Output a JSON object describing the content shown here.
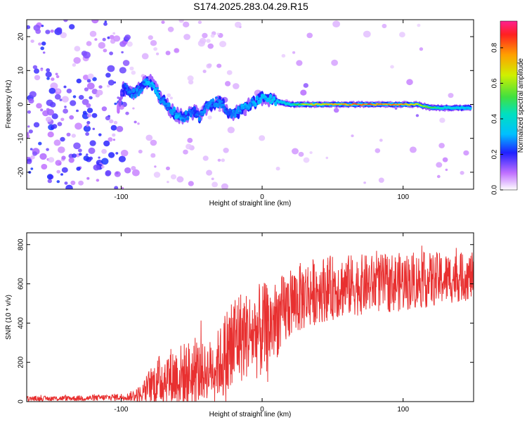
{
  "title": "S174.2025.283.04.29.R15",
  "spectrogram": {
    "type": "heatmap",
    "xlabel": "Height of straight line (km)",
    "ylabel": "Frequency (Hz)",
    "xlim": [
      -167,
      150
    ],
    "ylim": [
      -25,
      25
    ],
    "xticks": [
      -100,
      0,
      100
    ],
    "yticks": [
      -20,
      -10,
      0,
      10,
      20
    ],
    "xtick_labels": [
      "-100",
      "0",
      "100"
    ],
    "ytick_labels": [
      "-20",
      "-10",
      "0",
      "10",
      "20"
    ],
    "colorbar": {
      "label": "Normalized spectral amplitude",
      "range": [
        0,
        0.95
      ],
      "ticks": [
        0.0,
        0.2,
        0.4,
        0.6,
        0.8
      ],
      "tick_labels": [
        "0.0",
        "0.2",
        "0.4",
        "0.6",
        "0.8"
      ]
    },
    "ridge": {
      "x": [
        -102,
        -98,
        -92,
        -88,
        -84,
        -80,
        -76,
        -72,
        -68,
        -64,
        -60,
        -56,
        -52,
        -48,
        -44,
        -40,
        -36,
        -32,
        -28,
        -24,
        -20,
        -16,
        -12,
        -8,
        -4,
        0,
        10,
        20,
        30,
        40,
        50,
        60,
        70,
        80,
        90,
        100,
        110,
        120,
        130,
        140,
        148
      ],
      "freq": [
        -1,
        5,
        3,
        4,
        6,
        7,
        5,
        2,
        0,
        -2,
        -3,
        -4,
        -3,
        -2,
        -4,
        -1,
        0,
        1,
        0,
        -2,
        -3,
        -2,
        -1,
        0,
        1,
        2,
        1,
        0,
        0,
        0,
        0,
        0,
        0,
        0,
        0,
        0,
        0,
        -1,
        -1,
        -1,
        -1
      ],
      "amplitude": [
        0.1,
        0.25,
        0.3,
        0.3,
        0.3,
        0.35,
        0.35,
        0.3,
        0.3,
        0.3,
        0.35,
        0.3,
        0.3,
        0.25,
        0.3,
        0.3,
        0.3,
        0.3,
        0.3,
        0.25,
        0.3,
        0.3,
        0.35,
        0.3,
        0.35,
        0.35,
        0.4,
        0.45,
        0.7,
        0.75,
        0.8,
        0.85,
        0.9,
        0.88,
        0.85,
        0.85,
        0.7,
        0.6,
        0.45,
        0.4,
        0.35
      ]
    }
  },
  "snr_plot": {
    "type": "line",
    "xlabel": "Height of straight line (km)",
    "ylabel": "SNR (10 * v/v)",
    "xlim": [
      -167,
      150
    ],
    "ylim": [
      0,
      860
    ],
    "xticks": [
      -100,
      0,
      100
    ],
    "yticks": [
      0,
      200,
      400,
      600,
      800
    ],
    "xtick_labels": [
      "-100",
      "0",
      "100"
    ],
    "ytick_labels": [
      "0",
      "200",
      "400",
      "600",
      "800"
    ],
    "color": "#e83030",
    "envelope": {
      "x": [
        -167,
        -120,
        -95,
        -85,
        -80,
        -70,
        -60,
        -50,
        -40,
        -30,
        -22,
        -18,
        -10,
        0,
        5,
        10,
        15,
        20,
        30,
        40,
        60,
        80,
        100,
        120,
        150
      ],
      "baseline": [
        15,
        18,
        25,
        40,
        80,
        120,
        130,
        140,
        150,
        200,
        260,
        330,
        340,
        360,
        380,
        420,
        450,
        500,
        540,
        570,
        590,
        600,
        610,
        620,
        640
      ],
      "amplitude": [
        12,
        15,
        20,
        50,
        90,
        150,
        160,
        180,
        140,
        180,
        300,
        250,
        220,
        250,
        220,
        200,
        200,
        180,
        180,
        170,
        160,
        150,
        150,
        140,
        120
      ]
    }
  }
}
